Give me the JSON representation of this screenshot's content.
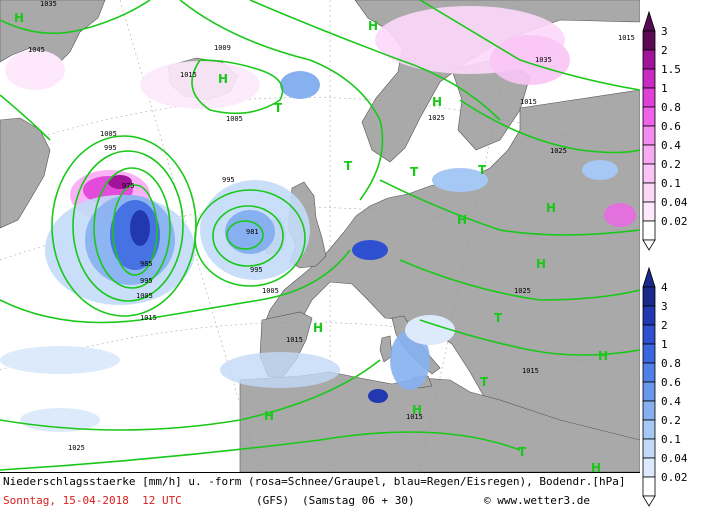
{
  "title_line": "Niederschlagsstaerke [mm/h] u. -form (rosa=Schnee/Graupel, blau=Regen/Eisregen), Bodendr.[hPa]",
  "date_line": "Sonntag, 15-04-2018  12 UTC",
  "model": "(GFS)",
  "run_info": "(Samstag 06 + 30)",
  "copyright": "© www.wetter3.de",
  "colors": {
    "land": "#a9a9a9",
    "sea": "#ffffff",
    "isobar": "#19c819",
    "snow_accent": "#ff44ff",
    "rain_accent": "#3a5cd8"
  },
  "legend_snow": {
    "labels": [
      "3",
      "2",
      "1.5",
      "1",
      "0.8",
      "0.6",
      "0.4",
      "0.2",
      "0.1",
      "0.04",
      "0.02"
    ],
    "colors": [
      "#5a0a55",
      "#a0139a",
      "#c82ac2",
      "#e040d8",
      "#f062ea",
      "#f58af0",
      "#f8aaf4",
      "#fac4f6",
      "#fcd8f9",
      "#fde9fb",
      "#ffffff"
    ]
  },
  "legend_rain": {
    "labels": [
      "4",
      "3",
      "2",
      "1",
      "0.8",
      "0.6",
      "0.4",
      "0.2",
      "0.1",
      "0.04",
      "0.02"
    ],
    "colors": [
      "#1a2a8a",
      "#2238b0",
      "#2e4fd0",
      "#3a66e0",
      "#4f80e8",
      "#6898ec",
      "#86b0f0",
      "#a6c8f4",
      "#c2daf8",
      "#dceafb",
      "#ffffff"
    ]
  },
  "pressure_labels": [
    {
      "text": "1045"
    },
    {
      "text": "1005"
    },
    {
      "text": "1009"
    },
    {
      "text": "1015"
    },
    {
      "text": "1035"
    },
    {
      "text": "1015"
    },
    {
      "text": "1025"
    },
    {
      "text": "1025"
    },
    {
      "text": "1005"
    },
    {
      "text": "995"
    },
    {
      "text": "975"
    },
    {
      "text": "985"
    },
    {
      "text": "995"
    },
    {
      "text": "1005"
    },
    {
      "text": "1015"
    },
    {
      "text": "995"
    },
    {
      "text": "981"
    },
    {
      "text": "995"
    },
    {
      "text": "1005"
    },
    {
      "text": "1015"
    },
    {
      "text": "1025"
    },
    {
      "text": "1015"
    },
    {
      "text": "1035"
    },
    {
      "text": "1025"
    },
    {
      "text": "1015"
    },
    {
      "text": "1015"
    }
  ],
  "pressure_systems": [
    {
      "type": "H"
    },
    {
      "type": "H"
    },
    {
      "type": "H"
    },
    {
      "type": "T"
    },
    {
      "type": "T"
    },
    {
      "type": "H"
    },
    {
      "type": "T"
    },
    {
      "type": "H"
    },
    {
      "type": "H"
    },
    {
      "type": "T"
    },
    {
      "type": "H"
    },
    {
      "type": "H"
    },
    {
      "type": "H"
    },
    {
      "type": "T"
    },
    {
      "type": "T"
    },
    {
      "type": "H"
    },
    {
      "type": "H"
    },
    {
      "type": "H"
    },
    {
      "type": "T"
    }
  ]
}
